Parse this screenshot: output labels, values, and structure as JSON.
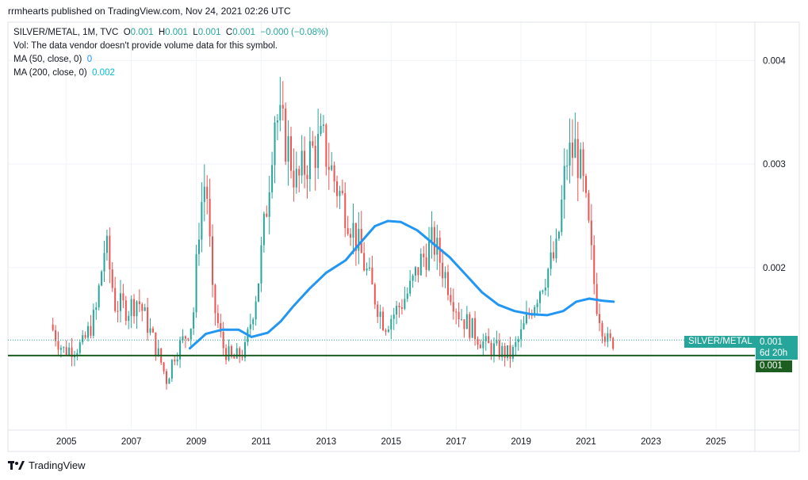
{
  "header": {
    "published": "rrmhearts published on TradingView.com, Nov 24, 2021 02:26 UTC"
  },
  "legend": {
    "symbol": "SILVER/METAL, 1M, TVC",
    "o_label": "O",
    "o_value": "0.001",
    "h_label": "H",
    "h_value": "0.001",
    "l_label": "L",
    "l_value": "0.001",
    "c_label": "C",
    "c_value": "0.001",
    "change": "−0.000 (−0.08%)",
    "vol_note": "Vol: The data vendor doesn't provide volume data for this symbol.",
    "ma50_label": "MA (50, close, 0)",
    "ma50_value": "0",
    "ma200_label": "MA (200, close, 0)",
    "ma200_value": "0.002"
  },
  "tags": {
    "symbol_tag": "SILVER/METAL",
    "price_tag": "0.001",
    "countdown": "6d 20h",
    "level_tag": "0.001"
  },
  "footer": {
    "brand": "TradingView"
  },
  "colors": {
    "up": "#26a69a",
    "down": "#ef5350",
    "ma": "#2196f3",
    "level": "#1b5e20",
    "grid": "#f0f3fa"
  },
  "chart_data": {
    "type": "candlestick",
    "title": "SILVER/METAL, 1M, TVC",
    "x_ticks": [
      "2005",
      "2007",
      "2009",
      "2011",
      "2013",
      "2015",
      "2017",
      "2019",
      "2021",
      "2023",
      "2025"
    ],
    "x_range": [
      2003.2,
      2026.2
    ],
    "y_ticks": [
      "0.002",
      "0.003",
      "0.004"
    ],
    "y_tick_values": [
      0.002,
      0.003,
      0.004
    ],
    "y_range": [
      0.00043,
      0.00437
    ],
    "horizontal_level": 0.00115,
    "last_price": 0.0013,
    "series_price": [
      [
        2004.5,
        0.00145
      ],
      [
        2004.9,
        0.0012
      ],
      [
        2005.5,
        0.00125
      ],
      [
        2005.9,
        0.00155
      ],
      [
        2006.2,
        0.00225
      ],
      [
        2006.5,
        0.00165
      ],
      [
        2006.9,
        0.0016
      ],
      [
        2007.2,
        0.0017
      ],
      [
        2007.5,
        0.00145
      ],
      [
        2007.9,
        0.0011
      ],
      [
        2008.1,
        0.0009
      ],
      [
        2008.3,
        0.00115
      ],
      [
        2008.6,
        0.0013
      ],
      [
        2008.9,
        0.0015
      ],
      [
        2009.1,
        0.0025
      ],
      [
        2009.3,
        0.0029
      ],
      [
        2009.5,
        0.0017
      ],
      [
        2009.8,
        0.00125
      ],
      [
        2010.1,
        0.0011
      ],
      [
        2010.5,
        0.0012
      ],
      [
        2010.9,
        0.00185
      ],
      [
        2011.2,
        0.0027
      ],
      [
        2011.4,
        0.0035
      ],
      [
        2011.8,
        0.0032
      ],
      [
        2012.1,
        0.0028
      ],
      [
        2012.5,
        0.0031
      ],
      [
        2012.9,
        0.0032
      ],
      [
        2013.3,
        0.0028
      ],
      [
        2013.7,
        0.0025
      ],
      [
        2014.0,
        0.0022
      ],
      [
        2014.4,
        0.0018
      ],
      [
        2014.8,
        0.00145
      ],
      [
        2015.2,
        0.0016
      ],
      [
        2015.6,
        0.0018
      ],
      [
        2015.9,
        0.00205
      ],
      [
        2016.3,
        0.00225
      ],
      [
        2016.7,
        0.0019
      ],
      [
        2017.1,
        0.00155
      ],
      [
        2017.5,
        0.0014
      ],
      [
        2017.9,
        0.00125
      ],
      [
        2018.3,
        0.0012
      ],
      [
        2018.7,
        0.00115
      ],
      [
        2019.0,
        0.00135
      ],
      [
        2019.3,
        0.0016
      ],
      [
        2019.7,
        0.0019
      ],
      [
        2020.1,
        0.00215
      ],
      [
        2020.4,
        0.00305
      ],
      [
        2020.7,
        0.00315
      ],
      [
        2020.9,
        0.0028
      ],
      [
        2021.1,
        0.0023
      ],
      [
        2021.3,
        0.0017
      ],
      [
        2021.5,
        0.00145
      ],
      [
        2021.7,
        0.00125
      ],
      [
        2021.85,
        0.0013
      ]
    ],
    "series_ma": [
      [
        2008.8,
        0.00122
      ],
      [
        2009.3,
        0.00136
      ],
      [
        2009.8,
        0.0014
      ],
      [
        2010.3,
        0.0014
      ],
      [
        2010.7,
        0.00133
      ],
      [
        2011.2,
        0.00137
      ],
      [
        2011.6,
        0.00148
      ],
      [
        2012.0,
        0.00163
      ],
      [
        2012.5,
        0.0018
      ],
      [
        2013.0,
        0.00195
      ],
      [
        2013.6,
        0.00207
      ],
      [
        2014.0,
        0.00222
      ],
      [
        2014.5,
        0.0024
      ],
      [
        2014.9,
        0.00245
      ],
      [
        2015.3,
        0.00244
      ],
      [
        2015.8,
        0.00236
      ],
      [
        2016.3,
        0.00223
      ],
      [
        2016.8,
        0.0021
      ],
      [
        2017.3,
        0.00193
      ],
      [
        2017.8,
        0.00176
      ],
      [
        2018.3,
        0.00164
      ],
      [
        2018.8,
        0.00158
      ],
      [
        2019.3,
        0.00155
      ],
      [
        2019.8,
        0.00154
      ],
      [
        2020.3,
        0.00158
      ],
      [
        2020.7,
        0.00167
      ],
      [
        2021.1,
        0.0017
      ],
      [
        2021.5,
        0.00168
      ],
      [
        2021.85,
        0.00167
      ]
    ]
  }
}
